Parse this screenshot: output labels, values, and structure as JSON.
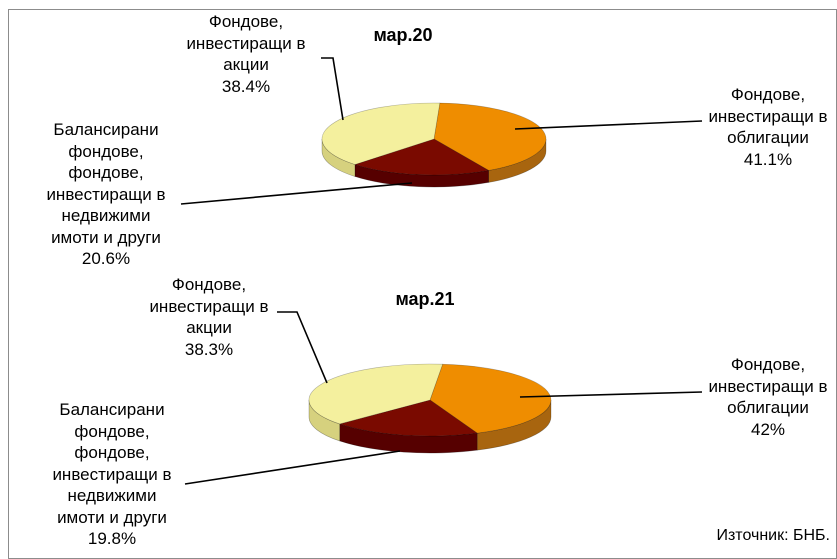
{
  "chart_data": [
    {
      "type": "pie",
      "style": "3d",
      "title": "мар.20",
      "categories": [
        "Фондове,\nинвестиращи в\nоблигации",
        "Балансирани\nфондове,\nфондове,\nинвестиращи в\nнедвижими\nимоти и други",
        "Фондове,\nинвестиращи в\nакции"
      ],
      "values": [
        41.1,
        20.6,
        38.4
      ],
      "value_labels": [
        "41.1%",
        "20.6%",
        "38.4%"
      ],
      "colors": [
        "#EF8D00",
        "#7A0A00",
        "#F4F09E"
      ],
      "side_colors": [
        "#A8650F",
        "#560000",
        "#D6D17E"
      ],
      "legend": "none"
    },
    {
      "type": "pie",
      "style": "3d",
      "title": "мар.21",
      "categories": [
        "Фондове,\nинвестиращи в\nоблигации",
        "Балансирани\nфондове,\nфондове,\nинвестиращи в\nнедвижими\nимоти и други",
        "Фондове,\nинвестиращи в\nакции"
      ],
      "values": [
        42,
        19.8,
        38.3
      ],
      "value_labels": [
        "42%",
        "19.8%",
        "38.3%"
      ],
      "colors": [
        "#EF8D00",
        "#7A0A00",
        "#F4F09E"
      ],
      "side_colors": [
        "#A8650F",
        "#560000",
        "#D6D17E"
      ],
      "legend": "none"
    }
  ],
  "source": "Източник: БНБ."
}
